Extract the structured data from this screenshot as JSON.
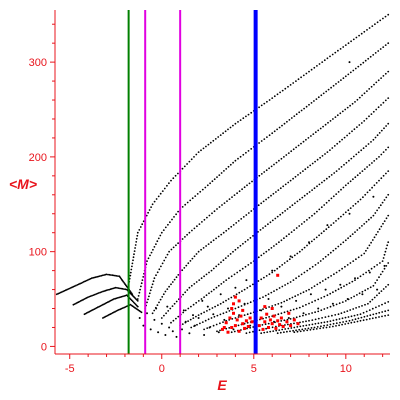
{
  "chart_data": {
    "type": "scatter",
    "title": "",
    "xlabel": "E",
    "ylabel": "<M>",
    "xlim": [
      -5.8,
      12.4
    ],
    "ylim": [
      -8,
      355
    ],
    "xticks": [
      -5,
      0,
      5,
      10
    ],
    "yticks": [
      0,
      100,
      200,
      300
    ],
    "grid": false,
    "legend": "none",
    "colors": {
      "axis": "#e8141c",
      "points": "#000000",
      "highlight": "#ff0000"
    },
    "vertical_lines": [
      {
        "x": -1.8,
        "color": "#008000",
        "width": 2
      },
      {
        "x": -0.9,
        "color": "#e100e1",
        "width": 2
      },
      {
        "x": 1.0,
        "color": "#e100e1",
        "width": 2
      },
      {
        "x": 5.1,
        "color": "#0000ff",
        "width": 4
      }
    ],
    "branches_left": [
      {
        "x": [
          -5.7,
          -4.8,
          -3.8,
          -3.0,
          -2.3,
          -1.6
        ],
        "y": [
          55,
          63,
          72,
          76,
          74,
          55
        ]
      },
      {
        "x": [
          -4.8,
          -4.0,
          -3.2,
          -2.5,
          -1.9,
          -1.3
        ],
        "y": [
          44,
          52,
          58,
          62,
          60,
          48
        ]
      },
      {
        "x": [
          -4.2,
          -3.4,
          -2.6,
          -1.9,
          -1.3
        ],
        "y": [
          34,
          42,
          50,
          54,
          42
        ]
      },
      {
        "x": [
          -3.2,
          -2.4,
          -1.7,
          -1.1
        ],
        "y": [
          30,
          38,
          44,
          36
        ]
      }
    ],
    "rising_curves": [
      {
        "x": [
          -1.8,
          -1.3,
          -0.5,
          0.5,
          2.0,
          4.0,
          6.0,
          8.0,
          10.0,
          12.3
        ],
        "y": [
          65,
          120,
          150,
          175,
          205,
          235,
          262,
          290,
          318,
          350
        ]
      },
      {
        "x": [
          -1.3,
          -0.8,
          0.0,
          1.0,
          2.5,
          4.0,
          6.0,
          8.0,
          10.0,
          12.3
        ],
        "y": [
          50,
          90,
          120,
          145,
          170,
          196,
          225,
          255,
          285,
          320
        ]
      },
      {
        "x": [
          -0.9,
          -0.4,
          0.4,
          1.5,
          3.0,
          4.5,
          6.5,
          8.5,
          10.5,
          12.3
        ],
        "y": [
          40,
          72,
          100,
          120,
          145,
          168,
          198,
          228,
          258,
          290
        ]
      },
      {
        "x": [
          -0.5,
          0.2,
          1.0,
          2.0,
          3.5,
          5.0,
          7.0,
          9.0,
          11.0,
          12.3
        ],
        "y": [
          35,
          58,
          78,
          100,
          122,
          145,
          175,
          205,
          238,
          262
        ]
      },
      {
        "x": [
          0.0,
          0.7,
          1.5,
          2.7,
          4.0,
          5.5,
          7.5,
          9.5,
          11.5,
          12.3
        ],
        "y": [
          30,
          45,
          62,
          80,
          102,
          125,
          155,
          185,
          218,
          235
        ]
      },
      {
        "x": [
          0.5,
          1.3,
          2.3,
          3.5,
          5.0,
          6.5,
          8.3,
          10.0,
          11.8,
          12.3
        ],
        "y": [
          25,
          38,
          52,
          70,
          90,
          112,
          140,
          170,
          200,
          210
        ]
      },
      {
        "x": [
          1.0,
          2.0,
          3.2,
          4.5,
          6.0,
          7.5,
          9.2,
          10.8,
          12.3
        ],
        "y": [
          22,
          33,
          45,
          60,
          78,
          100,
          128,
          155,
          185
        ]
      },
      {
        "x": [
          1.6,
          2.7,
          4.0,
          5.5,
          7.0,
          8.5,
          10.0,
          11.5,
          12.3
        ],
        "y": [
          20,
          30,
          40,
          52,
          68,
          88,
          112,
          138,
          160
        ]
      },
      {
        "x": [
          2.3,
          3.5,
          5.0,
          6.5,
          8.0,
          9.5,
          11.0,
          12.3
        ],
        "y": [
          18,
          27,
          36,
          46,
          60,
          78,
          98,
          138
        ]
      },
      {
        "x": [
          3.0,
          4.5,
          6.0,
          7.5,
          9.0,
          10.5,
          12.0,
          12.3
        ],
        "y": [
          16,
          24,
          32,
          41,
          54,
          70,
          90,
          110
        ]
      },
      {
        "x": [
          3.8,
          5.3,
          7.0,
          8.5,
          10.0,
          11.5,
          12.3
        ],
        "y": [
          15,
          22,
          29,
          37,
          48,
          64,
          88
        ]
      },
      {
        "x": [
          4.6,
          6.2,
          8.0,
          9.6,
          11.2,
          12.3
        ],
        "y": [
          14,
          21,
          27,
          34,
          45,
          65
        ]
      },
      {
        "x": [
          5.4,
          7.2,
          9.0,
          10.8,
          12.3
        ],
        "y": [
          14,
          20,
          26,
          34,
          47
        ]
      },
      {
        "x": [
          6.3,
          8.3,
          10.2,
          12.3
        ],
        "y": [
          14,
          20,
          27,
          38
        ]
      },
      {
        "x": [
          7.2,
          9.3,
          11.3,
          12.3
        ],
        "y": [
          15,
          21,
          29,
          33
        ]
      }
    ],
    "scatter_cloud": [
      {
        "x": -1.2,
        "y": 30
      },
      {
        "x": -1.0,
        "y": 22
      },
      {
        "x": -0.8,
        "y": 35
      },
      {
        "x": -0.6,
        "y": 18
      },
      {
        "x": -0.4,
        "y": 28
      },
      {
        "x": -0.2,
        "y": 15
      },
      {
        "x": 0.0,
        "y": 24
      },
      {
        "x": 0.2,
        "y": 12
      },
      {
        "x": 0.4,
        "y": 20
      },
      {
        "x": 0.6,
        "y": 16
      },
      {
        "x": 0.8,
        "y": 10
      },
      {
        "x": 1.1,
        "y": 18
      },
      {
        "x": 1.3,
        "y": 26
      },
      {
        "x": 1.5,
        "y": 14
      },
      {
        "x": 1.8,
        "y": 22
      },
      {
        "x": 2.0,
        "y": 30
      },
      {
        "x": 2.3,
        "y": 12
      },
      {
        "x": 2.6,
        "y": 20
      },
      {
        "x": 2.8,
        "y": 34
      },
      {
        "x": 3.1,
        "y": 15
      },
      {
        "x": 3.4,
        "y": 28
      },
      {
        "x": 3.6,
        "y": 40
      },
      {
        "x": 3.9,
        "y": 18
      },
      {
        "x": 4.2,
        "y": 33
      },
      {
        "x": 4.5,
        "y": 45
      },
      {
        "x": 4.8,
        "y": 22
      },
      {
        "x": 5.4,
        "y": 38
      },
      {
        "x": 5.8,
        "y": 50
      },
      {
        "x": 6.1,
        "y": 26
      },
      {
        "x": 6.5,
        "y": 42
      },
      {
        "x": 6.9,
        "y": 30
      },
      {
        "x": 7.3,
        "y": 48
      },
      {
        "x": 7.7,
        "y": 35
      },
      {
        "x": 8.1,
        "y": 55
      },
      {
        "x": 8.5,
        "y": 40
      },
      {
        "x": 8.9,
        "y": 60
      },
      {
        "x": 9.3,
        "y": 45
      },
      {
        "x": 9.7,
        "y": 65
      },
      {
        "x": 10.1,
        "y": 50
      },
      {
        "x": 10.5,
        "y": 72
      },
      {
        "x": 10.9,
        "y": 55
      },
      {
        "x": 11.3,
        "y": 78
      },
      {
        "x": 11.7,
        "y": 60
      },
      {
        "x": 12.1,
        "y": 85
      },
      {
        "x": 2.5,
        "y": 42
      },
      {
        "x": 3.2,
        "y": 55
      },
      {
        "x": 4.0,
        "y": 62
      },
      {
        "x": 4.6,
        "y": 70
      },
      {
        "x": 6.0,
        "y": 80
      },
      {
        "x": 7.0,
        "y": 95
      },
      {
        "x": 8.0,
        "y": 110
      },
      {
        "x": 9.0,
        "y": 128
      },
      {
        "x": 10.2,
        "y": 140
      },
      {
        "x": 10.2,
        "y": 300
      },
      {
        "x": 11.5,
        "y": 158
      },
      {
        "x": 1.2,
        "y": 38
      },
      {
        "x": 0.3,
        "y": 42
      },
      {
        "x": -0.3,
        "y": 40
      },
      {
        "x": 1.7,
        "y": 33
      },
      {
        "x": 2.2,
        "y": 48
      }
    ],
    "red_cluster": [
      {
        "x": 3.3,
        "y": 18
      },
      {
        "x": 3.5,
        "y": 25
      },
      {
        "x": 3.6,
        "y": 15
      },
      {
        "x": 3.7,
        "y": 30
      },
      {
        "x": 3.8,
        "y": 20
      },
      {
        "x": 3.9,
        "y": 35
      },
      {
        "x": 4.0,
        "y": 22
      },
      {
        "x": 4.1,
        "y": 28
      },
      {
        "x": 4.2,
        "y": 16
      },
      {
        "x": 4.3,
        "y": 32
      },
      {
        "x": 4.4,
        "y": 24
      },
      {
        "x": 4.5,
        "y": 19
      },
      {
        "x": 4.6,
        "y": 27
      },
      {
        "x": 4.7,
        "y": 21
      },
      {
        "x": 4.8,
        "y": 30
      },
      {
        "x": 3.9,
        "y": 45
      },
      {
        "x": 4.0,
        "y": 52
      },
      {
        "x": 4.2,
        "y": 48
      },
      {
        "x": 3.8,
        "y": 40
      },
      {
        "x": 4.4,
        "y": 38
      },
      {
        "x": 5.3,
        "y": 22
      },
      {
        "x": 5.4,
        "y": 30
      },
      {
        "x": 5.5,
        "y": 18
      },
      {
        "x": 5.6,
        "y": 26
      },
      {
        "x": 5.7,
        "y": 34
      },
      {
        "x": 5.8,
        "y": 20
      },
      {
        "x": 5.9,
        "y": 28
      },
      {
        "x": 6.0,
        "y": 24
      },
      {
        "x": 6.1,
        "y": 32
      },
      {
        "x": 6.2,
        "y": 19
      },
      {
        "x": 6.3,
        "y": 27
      },
      {
        "x": 6.4,
        "y": 23
      },
      {
        "x": 6.5,
        "y": 30
      },
      {
        "x": 6.6,
        "y": 21
      },
      {
        "x": 6.8,
        "y": 26
      },
      {
        "x": 7.0,
        "y": 22
      },
      {
        "x": 7.2,
        "y": 28
      },
      {
        "x": 7.4,
        "y": 24
      },
      {
        "x": 6.3,
        "y": 75
      },
      {
        "x": 6.0,
        "y": 40
      },
      {
        "x": 5.6,
        "y": 42
      },
      {
        "x": 6.9,
        "y": 35
      },
      {
        "x": 3.4,
        "y": 20
      },
      {
        "x": 4.9,
        "y": 26
      }
    ]
  }
}
